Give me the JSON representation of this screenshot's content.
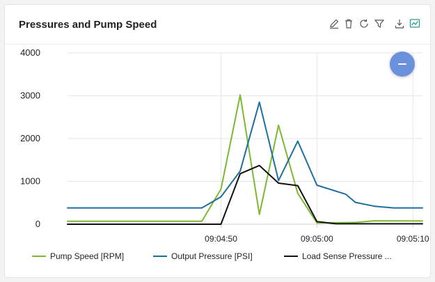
{
  "widget": {
    "title": "Pressures and Pump Speed",
    "toolbar": [
      {
        "name": "edit-icon"
      },
      {
        "name": "delete-icon"
      },
      {
        "name": "refresh-icon"
      },
      {
        "name": "filter-icon"
      },
      {
        "name": "download-icon"
      },
      {
        "name": "chart-icon",
        "active": true
      }
    ],
    "collapse_button_color": "#6b90dc"
  },
  "chart_data": {
    "type": "line",
    "ylim": [
      0,
      4000
    ],
    "yticks": [
      0,
      1000,
      2000,
      3000,
      4000
    ],
    "xlim": [
      "09:04:34",
      "09:05:11"
    ],
    "xticks": [
      "09:04:50",
      "09:05:00",
      "09:05:10"
    ],
    "grid": true,
    "legend_position": "bottom",
    "series": [
      {
        "name": "Pump Speed [RPM]",
        "color": "#7cb832",
        "points": [
          [
            "09:04:34",
            70
          ],
          [
            "09:04:41",
            70
          ],
          [
            "09:04:48",
            70
          ],
          [
            "09:04:50",
            820
          ],
          [
            "09:04:52",
            3020
          ],
          [
            "09:04:54",
            230
          ],
          [
            "09:04:56",
            2310
          ],
          [
            "09:04:58",
            720
          ],
          [
            "09:05:00",
            30
          ],
          [
            "09:05:04",
            40
          ],
          [
            "09:05:06",
            80
          ],
          [
            "09:05:11",
            75
          ]
        ]
      },
      {
        "name": "Output Pressure [PSI]",
        "color": "#1f6ea0",
        "points": [
          [
            "09:04:34",
            380
          ],
          [
            "09:04:48",
            380
          ],
          [
            "09:04:50",
            640
          ],
          [
            "09:04:52",
            1240
          ],
          [
            "09:04:54",
            2850
          ],
          [
            "09:04:56",
            1020
          ],
          [
            "09:04:58",
            1940
          ],
          [
            "09:05:00",
            910
          ],
          [
            "09:05:03",
            700
          ],
          [
            "09:05:04",
            510
          ],
          [
            "09:05:06",
            420
          ],
          [
            "09:05:08",
            380
          ],
          [
            "09:05:11",
            380
          ]
        ]
      },
      {
        "name": "Load Sense Pressure [PSI]",
        "color": "#111111",
        "points": [
          [
            "09:04:34",
            0
          ],
          [
            "09:04:48",
            0
          ],
          [
            "09:04:50",
            0
          ],
          [
            "09:04:52",
            1180
          ],
          [
            "09:04:54",
            1370
          ],
          [
            "09:04:56",
            960
          ],
          [
            "09:04:58",
            900
          ],
          [
            "09:05:00",
            60
          ],
          [
            "09:05:02",
            10
          ],
          [
            "09:05:11",
            10
          ]
        ]
      }
    ]
  },
  "legend": {
    "items": [
      {
        "label": "Pump Speed [RPM]",
        "color": "#7cb832"
      },
      {
        "label": "Output Pressure [PSI]",
        "color": "#1f6ea0"
      },
      {
        "label": "Load Sense Pressure ...",
        "color": "#111111"
      }
    ]
  }
}
